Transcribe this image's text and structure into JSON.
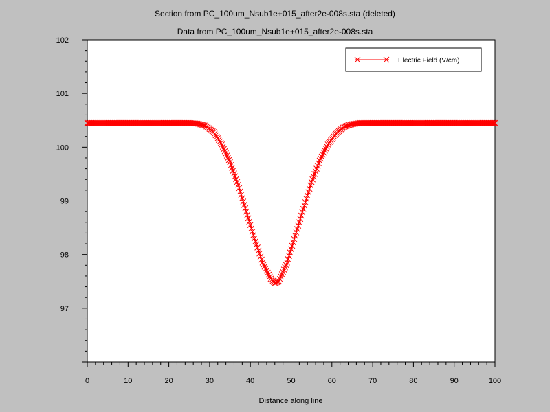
{
  "window": {
    "title_line1": "Section from PC_100um_Nsub1e+015_after2e-008s.sta (deleted)",
    "title_line2": "Data from PC_100um_Nsub1e+015_after2e-008s.sta"
  },
  "chart_data": {
    "type": "line",
    "title": "Section from PC_100um_Nsub1e+015_after2e-008s.sta (deleted)",
    "subtitle": "Data from PC_100um_Nsub1e+015_after2e-008s.sta",
    "xlabel": "Distance along line",
    "ylabel": "",
    "xlim": [
      0,
      100
    ],
    "ylim": [
      96,
      102
    ],
    "x_ticks": [
      0,
      10,
      20,
      30,
      40,
      50,
      60,
      70,
      80,
      90,
      100
    ],
    "y_ticks": [
      97,
      98,
      99,
      100,
      101,
      102
    ],
    "grid": false,
    "legend_position": "top-right",
    "series": [
      {
        "name": "Electric Field (V/cm)",
        "color": "#ff0000",
        "marker": "x",
        "x": [
          0,
          10,
          20,
          25,
          27,
          29,
          31,
          33,
          35,
          37,
          39,
          41,
          43,
          45,
          46,
          47,
          49,
          51,
          53,
          55,
          57,
          59,
          61,
          63,
          65,
          67,
          70,
          80,
          90,
          100
        ],
        "y": [
          100.45,
          100.45,
          100.45,
          100.45,
          100.44,
          100.4,
          100.28,
          100.05,
          99.72,
          99.3,
          98.8,
          98.3,
          97.85,
          97.55,
          97.47,
          97.5,
          97.85,
          98.35,
          98.85,
          99.35,
          99.75,
          100.05,
          100.25,
          100.38,
          100.43,
          100.45,
          100.45,
          100.45,
          100.45,
          100.45
        ]
      }
    ]
  }
}
